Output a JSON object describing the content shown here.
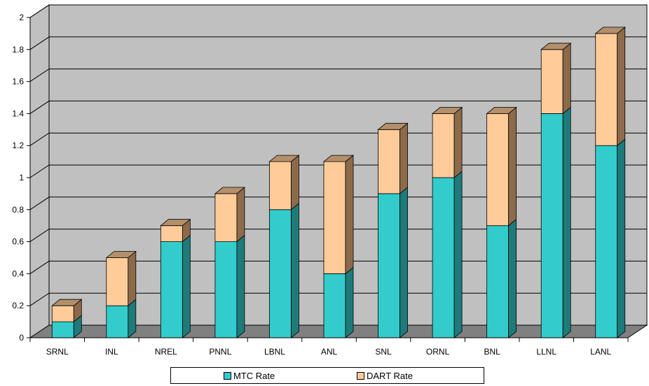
{
  "chart_data": {
    "type": "bar",
    "stacked": true,
    "three_d": true,
    "categories": [
      "SRNL",
      "INL",
      "NREL",
      "PNNL",
      "LBNL",
      "ANL",
      "SNL",
      "ORNL",
      "BNL",
      "LLNL",
      "LANL"
    ],
    "series": [
      {
        "name": "MTC Rate",
        "values": [
          0.1,
          0.2,
          0.6,
          0.6,
          0.8,
          0.4,
          0.9,
          1.0,
          0.7,
          1.4,
          1.2
        ]
      },
      {
        "name": "DART Rate",
        "values": [
          0.1,
          0.3,
          0.1,
          0.3,
          0.3,
          0.7,
          0.4,
          0.4,
          0.7,
          0.4,
          0.7
        ]
      }
    ],
    "y_ticks": [
      "0",
      "0.2",
      "0.4",
      "0.6",
      "0.8",
      "1",
      "1.2",
      "1.4",
      "1.6",
      "1.8",
      "2"
    ],
    "ylim": [
      0,
      2
    ],
    "grid": true,
    "legend_position": "bottom",
    "title": "",
    "xlabel": "",
    "ylabel": ""
  },
  "colors": {
    "mtc_front": "#33CCCC",
    "mtc_side": "#1F7A7A",
    "mtc_top": "#29A3A3",
    "dart_front": "#FFCC99",
    "dart_side": "#8C6A4A",
    "dart_top": "#B38F6B",
    "wall": "#C0C0C0",
    "floor": "#808080"
  }
}
